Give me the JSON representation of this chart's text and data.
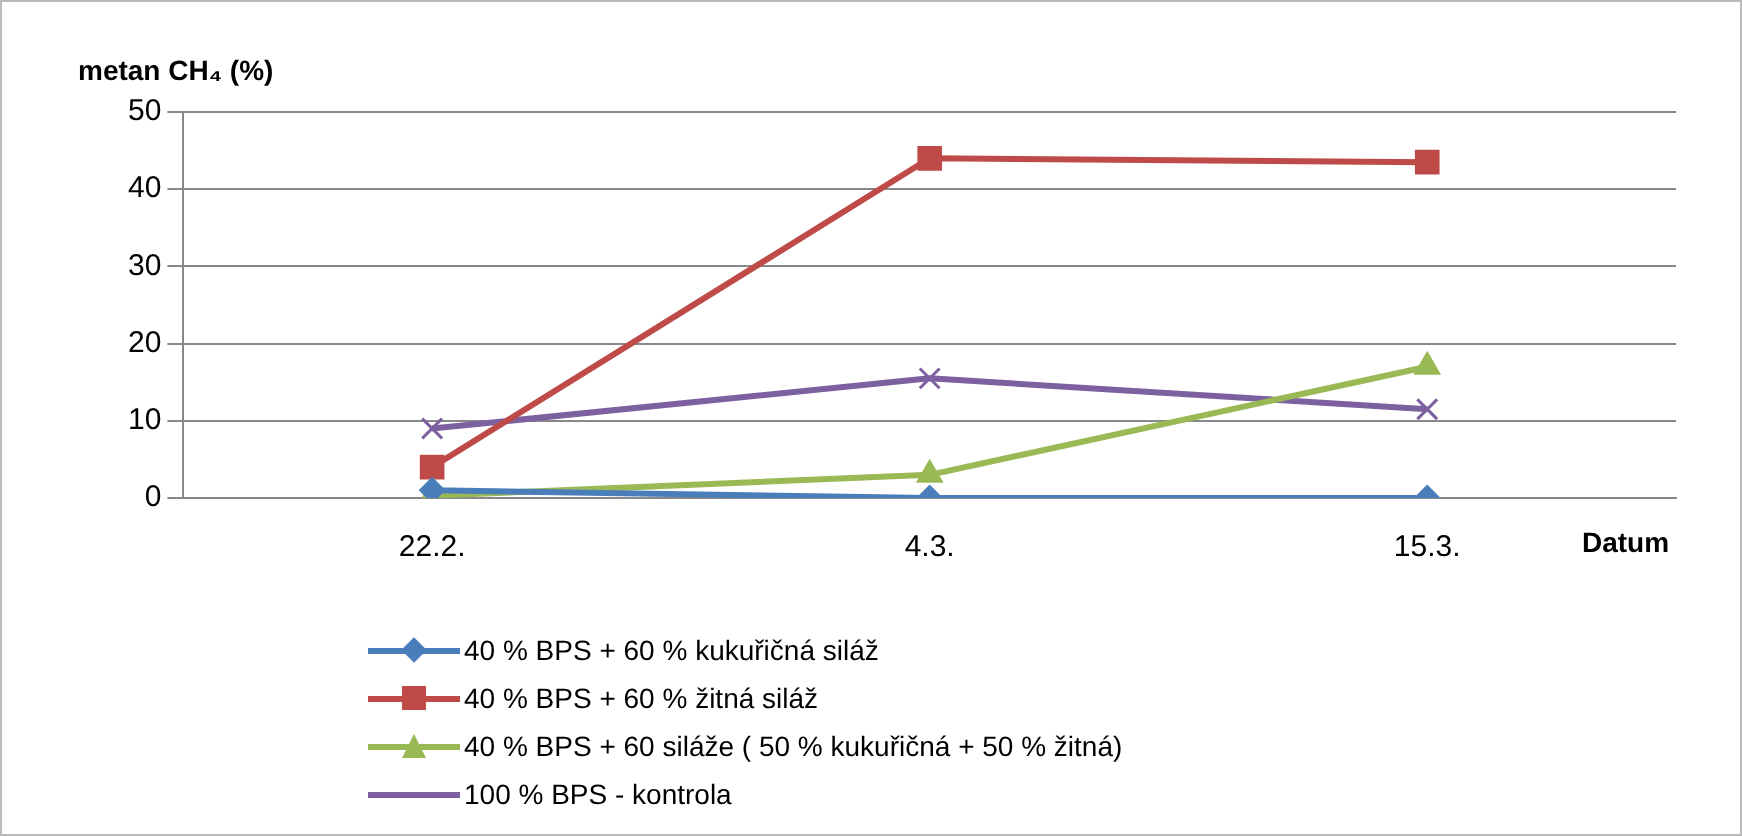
{
  "chart_data": {
    "type": "line",
    "ylabel": "metan CH₄ (%)",
    "xlabel": "Datum",
    "categories": [
      "22.2.",
      "4.3.",
      "15.3."
    ],
    "series": [
      {
        "name": "40 % BPS + 60 % kukuřičná siláž",
        "color": "#4a7ebb",
        "marker": "diamond",
        "values": [
          1,
          0,
          0
        ]
      },
      {
        "name": "40 % BPS + 60 % žitná siláž",
        "color": "#be4b48",
        "marker": "square",
        "values": [
          4,
          44,
          43.5
        ]
      },
      {
        "name": "40 % BPS + 60 siláže ( 50 % kukuřičná + 50 % žitná)",
        "color": "#98b954",
        "marker": "triangle",
        "values": [
          0.3,
          3,
          17
        ]
      },
      {
        "name": "100 % BPS - kontrola",
        "color": "#7d60a0",
        "marker": "cross",
        "values": [
          9,
          15.5,
          11.5
        ]
      }
    ],
    "ylim": [
      0,
      50
    ],
    "yticks": [
      0,
      10,
      20,
      30,
      40,
      50
    ],
    "grid": "y",
    "legend": "bottom"
  }
}
